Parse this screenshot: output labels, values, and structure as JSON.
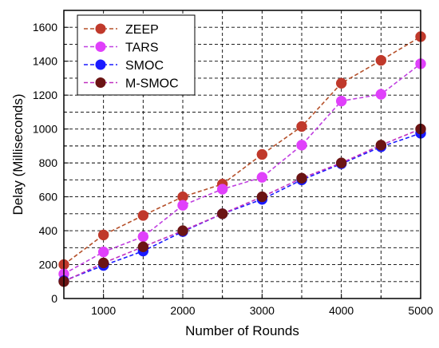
{
  "chart_data": {
    "type": "line",
    "title": "",
    "xlabel": "Number of Rounds",
    "ylabel": "Delay (Milliseconds)",
    "x": [
      500,
      1000,
      1500,
      2000,
      2500,
      3000,
      3500,
      4000,
      4500,
      5000
    ],
    "xlim": [
      500,
      5000
    ],
    "ylim": [
      0,
      1700
    ],
    "xticks": [
      1000,
      2000,
      3000,
      4000,
      5000
    ],
    "yticks": [
      0,
      200,
      400,
      600,
      800,
      1000,
      1200,
      1400,
      1600
    ],
    "xtick_labels": [
      "1000",
      "2000",
      "3000",
      "4000",
      "5000"
    ],
    "ytick_labels": [
      "0",
      "200",
      "400",
      "600",
      "800",
      "1000",
      "1200",
      "1400",
      "1600"
    ],
    "grid": true,
    "legend_position": "top-left",
    "series": [
      {
        "name": "ZEEP",
        "color": "#c0392b",
        "line_color": "#b5502a",
        "values": [
          200,
          375,
          490,
          600,
          675,
          850,
          1015,
          1270,
          1405,
          1545
        ]
      },
      {
        "name": "TARS",
        "color": "#e040fb",
        "line_color": "#c040e0",
        "values": [
          145,
          275,
          365,
          550,
          645,
          715,
          905,
          1165,
          1205,
          1385
        ]
      },
      {
        "name": "SMOC",
        "color": "#1a1aff",
        "line_color": "#1a1aff",
        "values": [
          105,
          195,
          280,
          395,
          500,
          585,
          700,
          795,
          895,
          975
        ]
      },
      {
        "name": "M-SMOC",
        "color": "#6b1414",
        "line_color": "#c030c0",
        "values": [
          100,
          210,
          305,
          400,
          500,
          600,
          710,
          800,
          905,
          1000
        ]
      }
    ]
  }
}
